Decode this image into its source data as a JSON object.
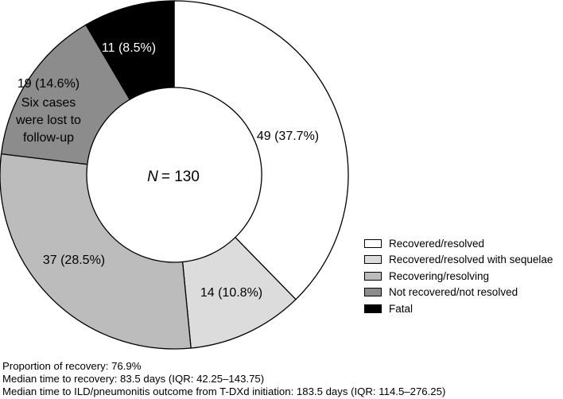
{
  "chart_data": {
    "type": "pie",
    "donut": true,
    "total_label": "= 130",
    "total_label_prefix": "N",
    "slices": [
      {
        "name": "Recovered/resolved",
        "value": 49,
        "label": "49 (37.7%)",
        "color": "#ffffff",
        "label_color": "#000000"
      },
      {
        "name": "Recovered/resolved with sequelae",
        "value": 14,
        "label": "14 (10.8%)",
        "color": "#dcdcdc",
        "label_color": "#000000"
      },
      {
        "name": "Recovering/resolving",
        "value": 37,
        "label": "37 (28.5%)",
        "color": "#bcbcbc",
        "label_color": "#000000"
      },
      {
        "name": "Not recovered/not resolved",
        "value": 19,
        "label": "19 (14.6%)",
        "color": "#8c8c8c",
        "label_color": "#000000",
        "annotation": [
          "Six cases",
          "were lost to",
          "follow-up"
        ]
      },
      {
        "name": "Fatal",
        "value": 11,
        "label": "11 (8.5%)",
        "color": "#000000",
        "label_color": "#ffffff"
      }
    ]
  },
  "notes": [
    "Proportion of recovery: 76.9%",
    "Median time to recovery: 83.5 days (IQR: 42.25–143.75)",
    "Median time to ILD/pneumonitis outcome from T-DXd initiation: 183.5 days (IQR: 114.5–276.25)"
  ]
}
